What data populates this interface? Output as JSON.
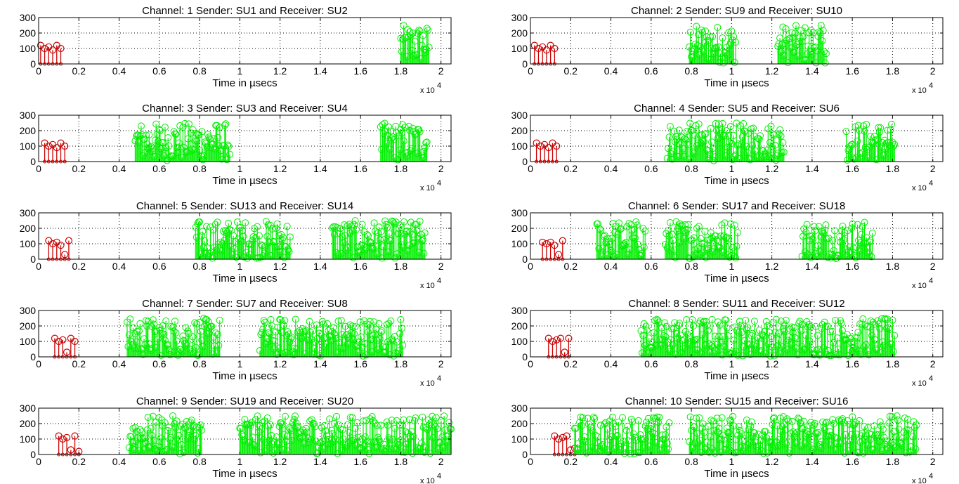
{
  "chart_data": [
    {
      "type": "stem",
      "title": "Channel: 1 Sender: SU1  and  Receiver: SU2",
      "xlabel": "Time in µsecs",
      "xlim": [
        0,
        2.05
      ],
      "ylim": [
        0,
        300
      ],
      "x_exponent": "x 10",
      "x_exponent_power": "4",
      "yticks": [
        "0",
        "100",
        "200",
        "300"
      ],
      "xticks": [
        "0",
        "0.2",
        "0.4",
        "0.6",
        "0.8",
        "1",
        "1.2",
        "1.4",
        "1.6",
        "1.8",
        "2"
      ],
      "grid": true,
      "series": [
        {
          "color": "#cc0000",
          "kind": "control",
          "x": [
            0.01,
            0.03,
            0.05,
            0.07,
            0.09,
            0.11
          ],
          "y": [
            120,
            100,
            110,
            90,
            120,
            100
          ]
        },
        {
          "color": "#00ee00",
          "kind": "data",
          "ranges": [
            [
              1.8,
              1.94
            ]
          ],
          "ymax": 250
        }
      ]
    },
    {
      "type": "stem",
      "title": "Channel: 2 Sender: SU9  and  Receiver: SU10",
      "xlabel": "Time in µsecs",
      "xlim": [
        0,
        2.05
      ],
      "ylim": [
        0,
        300
      ],
      "x_exponent": "x 10",
      "x_exponent_power": "4",
      "yticks": [
        "0",
        "100",
        "200",
        "300"
      ],
      "xticks": [
        "0",
        "0.2",
        "0.4",
        "0.6",
        "0.8",
        "1",
        "1.2",
        "1.4",
        "1.6",
        "1.8",
        "2"
      ],
      "grid": true,
      "series": [
        {
          "color": "#cc0000",
          "kind": "control",
          "x": [
            0.02,
            0.04,
            0.06,
            0.08,
            0.1,
            0.12
          ],
          "y": [
            120,
            100,
            110,
            90,
            120,
            100
          ]
        },
        {
          "color": "#00ee00",
          "kind": "data",
          "ranges": [
            [
              0.79,
              1.02
            ],
            [
              1.23,
              1.47
            ]
          ],
          "ymax": 250
        }
      ]
    },
    {
      "type": "stem",
      "title": "Channel: 3 Sender: SU3  and  Receiver: SU4",
      "xlabel": "Time in µsecs",
      "xlim": [
        0,
        2.05
      ],
      "ylim": [
        0,
        300
      ],
      "x_exponent": "x 10",
      "x_exponent_power": "4",
      "yticks": [
        "0",
        "100",
        "200",
        "300"
      ],
      "xticks": [
        "0",
        "0.2",
        "0.4",
        "0.6",
        "0.8",
        "1",
        "1.2",
        "1.4",
        "1.6",
        "1.8",
        "2"
      ],
      "grid": true,
      "series": [
        {
          "color": "#cc0000",
          "kind": "control",
          "x": [
            0.03,
            0.05,
            0.07,
            0.09,
            0.11,
            0.13
          ],
          "y": [
            120,
            100,
            110,
            90,
            120,
            100
          ]
        },
        {
          "color": "#00ee00",
          "kind": "data",
          "ranges": [
            [
              0.48,
              0.95
            ],
            [
              1.7,
              1.93
            ]
          ],
          "ymax": 250
        }
      ]
    },
    {
      "type": "stem",
      "title": "Channel: 4 Sender: SU5  and  Receiver: SU6",
      "xlabel": "Time in µsecs",
      "xlim": [
        0,
        2.05
      ],
      "ylim": [
        0,
        300
      ],
      "x_exponent": "x 10",
      "x_exponent_power": "4",
      "yticks": [
        "0",
        "100",
        "200",
        "300"
      ],
      "xticks": [
        "0",
        "0.2",
        "0.4",
        "0.6",
        "0.8",
        "1",
        "1.2",
        "1.4",
        "1.6",
        "1.8",
        "2"
      ],
      "grid": true,
      "series": [
        {
          "color": "#cc0000",
          "kind": "control",
          "x": [
            0.03,
            0.05,
            0.07,
            0.09,
            0.11,
            0.13
          ],
          "y": [
            120,
            100,
            110,
            90,
            120,
            100
          ]
        },
        {
          "color": "#00ee00",
          "kind": "data",
          "ranges": [
            [
              0.68,
              1.26
            ],
            [
              1.57,
              1.81
            ]
          ],
          "ymax": 250
        }
      ]
    },
    {
      "type": "stem",
      "title": "Channel: 5 Sender: SU13  and  Receiver: SU14",
      "xlabel": "Time in µsecs",
      "xlim": [
        0,
        2.05
      ],
      "ylim": [
        0,
        300
      ],
      "x_exponent": "x 10",
      "x_exponent_power": "4",
      "yticks": [
        "0",
        "100",
        "200",
        "300"
      ],
      "xticks": [
        "0",
        "0.2",
        "0.4",
        "0.6",
        "0.8",
        "1",
        "1.2",
        "1.4",
        "1.6",
        "1.8",
        "2"
      ],
      "grid": true,
      "series": [
        {
          "color": "#cc0000",
          "kind": "control",
          "x": [
            0.05,
            0.07,
            0.09,
            0.11,
            0.13,
            0.15
          ],
          "y": [
            120,
            100,
            110,
            90,
            30,
            120
          ]
        },
        {
          "color": "#00ee00",
          "kind": "data",
          "ranges": [
            [
              0.78,
              1.25
            ],
            [
              1.46,
              1.92
            ]
          ],
          "ymax": 250
        }
      ]
    },
    {
      "type": "stem",
      "title": "Channel: 6 Sender: SU17  and  Receiver: SU18",
      "xlabel": "Time in µsecs",
      "xlim": [
        0,
        2.05
      ],
      "ylim": [
        0,
        300
      ],
      "x_exponent": "x 10",
      "x_exponent_power": "4",
      "yticks": [
        "0",
        "100",
        "200",
        "300"
      ],
      "xticks": [
        "0",
        "0.2",
        "0.4",
        "0.6",
        "0.8",
        "1",
        "1.2",
        "1.4",
        "1.6",
        "1.8",
        "2"
      ],
      "grid": true,
      "series": [
        {
          "color": "#cc0000",
          "kind": "control",
          "x": [
            0.06,
            0.08,
            0.1,
            0.12,
            0.14,
            0.16
          ],
          "y": [
            110,
            100,
            110,
            90,
            30,
            120
          ]
        },
        {
          "color": "#00ee00",
          "kind": "data",
          "ranges": [
            [
              0.33,
              0.57
            ],
            [
              0.67,
              1.03
            ],
            [
              1.35,
              1.7
            ]
          ],
          "ymax": 250
        }
      ]
    },
    {
      "type": "stem",
      "title": "Channel: 7 Sender: SU7  and  Receiver: SU8",
      "xlabel": "Time in µsecs",
      "xlim": [
        0,
        2.05
      ],
      "ylim": [
        0,
        300
      ],
      "x_exponent": "x 10",
      "x_exponent_power": "4",
      "yticks": [
        "0",
        "100",
        "200",
        "300"
      ],
      "xticks": [
        "0",
        "0.2",
        "0.4",
        "0.6",
        "0.8",
        "1",
        "1.2",
        "1.4",
        "1.6",
        "1.8",
        "2"
      ],
      "grid": true,
      "series": [
        {
          "color": "#cc0000",
          "kind": "control",
          "x": [
            0.08,
            0.1,
            0.12,
            0.14,
            0.16,
            0.18
          ],
          "y": [
            120,
            100,
            110,
            30,
            120,
            100
          ]
        },
        {
          "color": "#00ee00",
          "kind": "data",
          "ranges": [
            [
              0.44,
              0.9
            ],
            [
              1.1,
              1.81
            ]
          ],
          "ymax": 250
        }
      ]
    },
    {
      "type": "stem",
      "title": "Channel: 8 Sender: SU11  and  Receiver: SU12",
      "xlabel": "Time in µsecs",
      "xlim": [
        0,
        2.05
      ],
      "ylim": [
        0,
        300
      ],
      "x_exponent": "x 10",
      "x_exponent_power": "4",
      "yticks": [
        "0",
        "100",
        "200",
        "300"
      ],
      "xticks": [
        "0",
        "0.2",
        "0.4",
        "0.6",
        "0.8",
        "1",
        "1.2",
        "1.4",
        "1.6",
        "1.8",
        "2"
      ],
      "grid": true,
      "series": [
        {
          "color": "#cc0000",
          "kind": "control",
          "x": [
            0.09,
            0.11,
            0.13,
            0.15,
            0.17,
            0.19
          ],
          "y": [
            120,
            100,
            110,
            120,
            30,
            120
          ]
        },
        {
          "color": "#00ee00",
          "kind": "data",
          "ranges": [
            [
              0.55,
              1.81
            ]
          ],
          "ymax": 250
        }
      ]
    },
    {
      "type": "stem",
      "title": "Channel: 9 Sender: SU19  and  Receiver: SU20",
      "xlabel": "Time in µsecs",
      "xlim": [
        0,
        2.05
      ],
      "ylim": [
        0,
        300
      ],
      "x_exponent": "x 10",
      "x_exponent_power": "4",
      "yticks": [
        "0",
        "100",
        "200",
        "300"
      ],
      "xticks": [
        "0",
        "0.2",
        "0.4",
        "0.6",
        "0.8",
        "1",
        "1.2",
        "1.4",
        "1.6",
        "1.8",
        "2"
      ],
      "grid": true,
      "series": [
        {
          "color": "#cc0000",
          "kind": "control",
          "x": [
            0.1,
            0.12,
            0.14,
            0.16,
            0.18,
            0.2
          ],
          "y": [
            120,
            100,
            110,
            30,
            120,
            20
          ]
        },
        {
          "color": "#00ee00",
          "kind": "data",
          "ranges": [
            [
              0.45,
              0.81
            ],
            [
              1.0,
              2.05
            ]
          ],
          "ymax": 250
        }
      ]
    },
    {
      "type": "stem",
      "title": "Channel: 10 Sender: SU15  and  Receiver: SU16",
      "xlabel": "Time in µsecs",
      "xlim": [
        0,
        2.05
      ],
      "ylim": [
        0,
        300
      ],
      "x_exponent": "x 10",
      "x_exponent_power": "4",
      "yticks": [
        "0",
        "100",
        "200",
        "300"
      ],
      "xticks": [
        "0",
        "0.2",
        "0.4",
        "0.6",
        "0.8",
        "1",
        "1.2",
        "1.4",
        "1.6",
        "1.8",
        "2"
      ],
      "grid": true,
      "series": [
        {
          "color": "#cc0000",
          "kind": "control",
          "x": [
            0.12,
            0.14,
            0.16,
            0.18,
            0.2,
            0.22
          ],
          "y": [
            120,
            100,
            110,
            120,
            30,
            40
          ]
        },
        {
          "color": "#00ee00",
          "kind": "data",
          "ranges": [
            [
              0.22,
              0.69
            ],
            [
              0.79,
              1.92
            ]
          ],
          "ymax": 250
        }
      ]
    }
  ]
}
